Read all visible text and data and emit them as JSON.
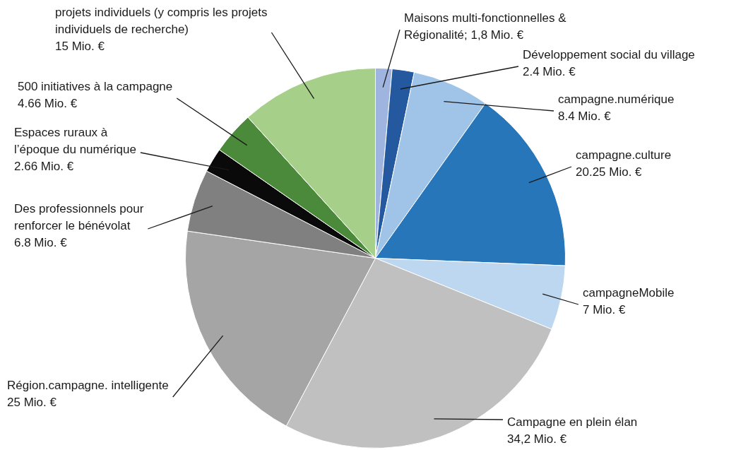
{
  "chart_data": {
    "type": "pie",
    "categories": [
      "Maisons multi-fonctionnelles & Régionalité",
      "Développement social du village",
      "campagne.numérique",
      "campagne.culture",
      "campagneMobile",
      "Campagne en plein élan",
      "Région.campagne. intelligente",
      "Des professionnels pour renforcer le bénévolat",
      "Espaces ruraux à l’époque du numérique",
      "500 initiatives à la campagne",
      "projets individuels (y compris les projets individuels de recherche)"
    ],
    "values": [
      1.8,
      2.4,
      8.4,
      20.25,
      7,
      34.2,
      25,
      6.8,
      2.66,
      4.66,
      15
    ],
    "value_labels": [
      "1,8 Mio. €",
      "2.4 Mio. €",
      "8.4 Mio. €",
      "20.25 Mio. €",
      "7 Mio. €",
      "34,2 Mio. €",
      "25 Mio. €",
      "6.8 Mio. €",
      "2.66 Mio. €",
      "4.66 Mio. €",
      "15 Mio. €"
    ],
    "colors": [
      "#9fb5e0",
      "#24589f",
      "#a0c4e8",
      "#2776ba",
      "#bdd7f0",
      "#c0c0c0",
      "#a5a5a5",
      "#808080",
      "#0a0a0a",
      "#4a8a3a",
      "#a6d08a"
    ],
    "legend": false
  }
}
